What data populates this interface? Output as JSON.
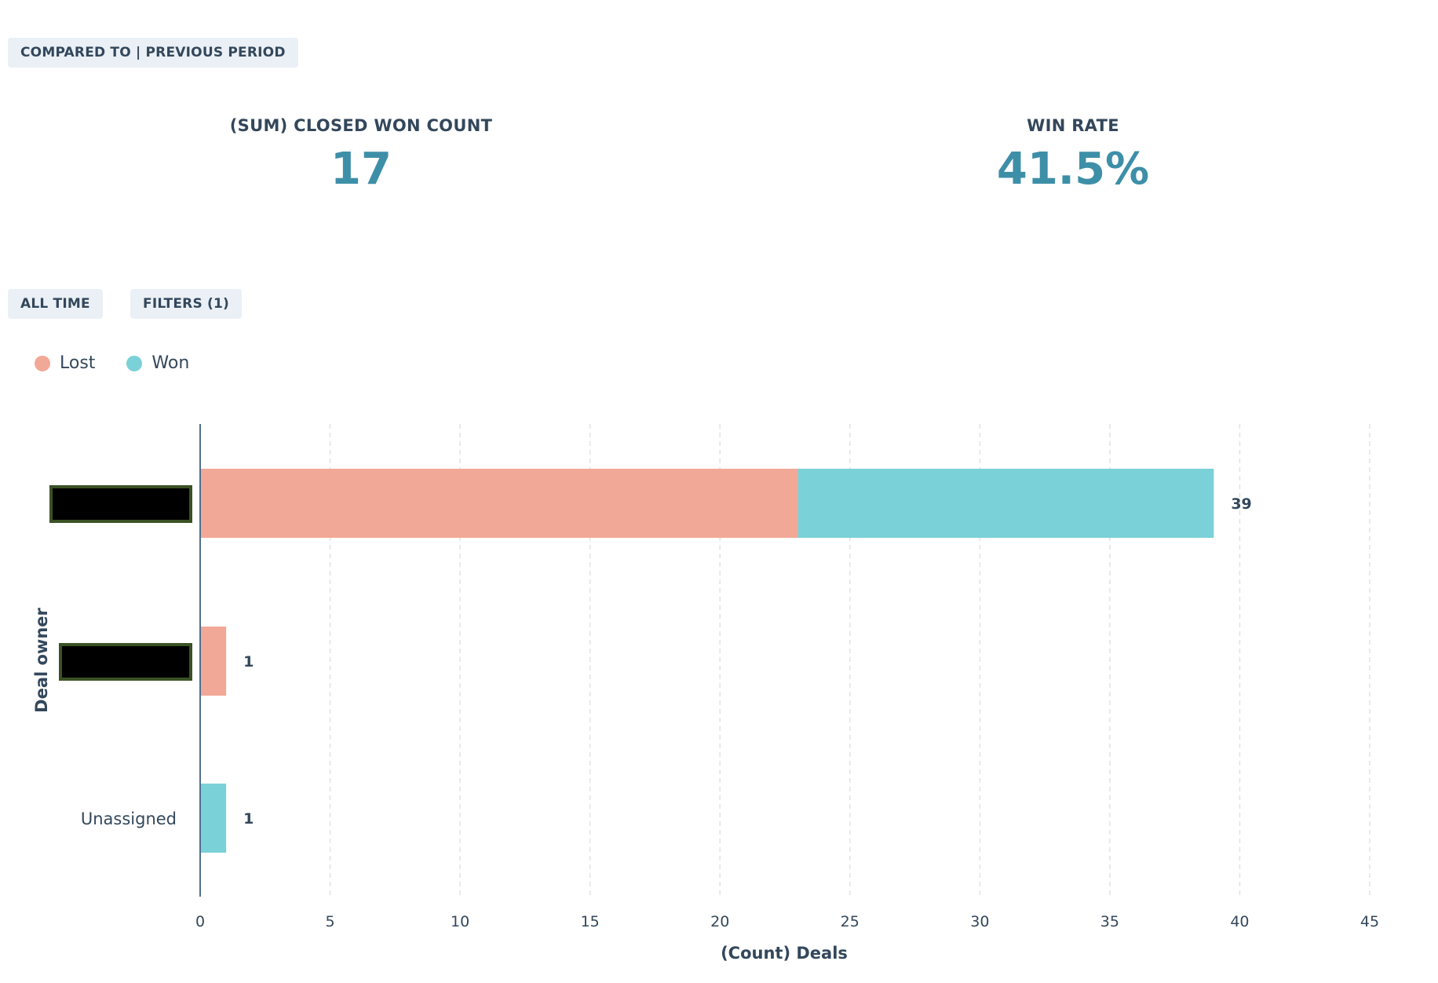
{
  "header": {
    "compare_label": "COMPARED TO | PREVIOUS PERIOD"
  },
  "kpis": [
    {
      "label": "(SUM) CLOSED WON COUNT",
      "value": "17"
    },
    {
      "label": "WIN RATE",
      "value": "41.5%"
    }
  ],
  "filters": {
    "date_range_label": "ALL TIME",
    "filters_label": "FILTERS (1)"
  },
  "legend": [
    {
      "name": "Lost",
      "color": "#f2a896"
    },
    {
      "name": "Won",
      "color": "#7bd1d8"
    }
  ],
  "colors": {
    "lost": "#f2a896",
    "won": "#7bd1d8",
    "kpi_value": "#3d8fa8",
    "axis": "#516f90",
    "grid": "#dfe3eb",
    "redaction_fill": "#000000",
    "redaction_border": "#3b5224"
  },
  "chart_data": {
    "type": "bar",
    "orientation": "horizontal",
    "stacked": true,
    "categories": [
      "[redacted]",
      "[redacted]",
      "Unassigned"
    ],
    "category_redacted": [
      true,
      true,
      false
    ],
    "series": [
      {
        "name": "Lost",
        "values": [
          23,
          1,
          0
        ]
      },
      {
        "name": "Won",
        "values": [
          16,
          0,
          1
        ]
      }
    ],
    "totals": [
      39,
      1,
      1
    ],
    "xlabel": "(Count) Deals",
    "ylabel": "Deal owner",
    "xlim": [
      0,
      45
    ],
    "xticks": [
      0,
      5,
      10,
      15,
      20,
      25,
      30,
      35,
      40,
      45
    ],
    "grid": true,
    "legend_position": "top-left"
  }
}
